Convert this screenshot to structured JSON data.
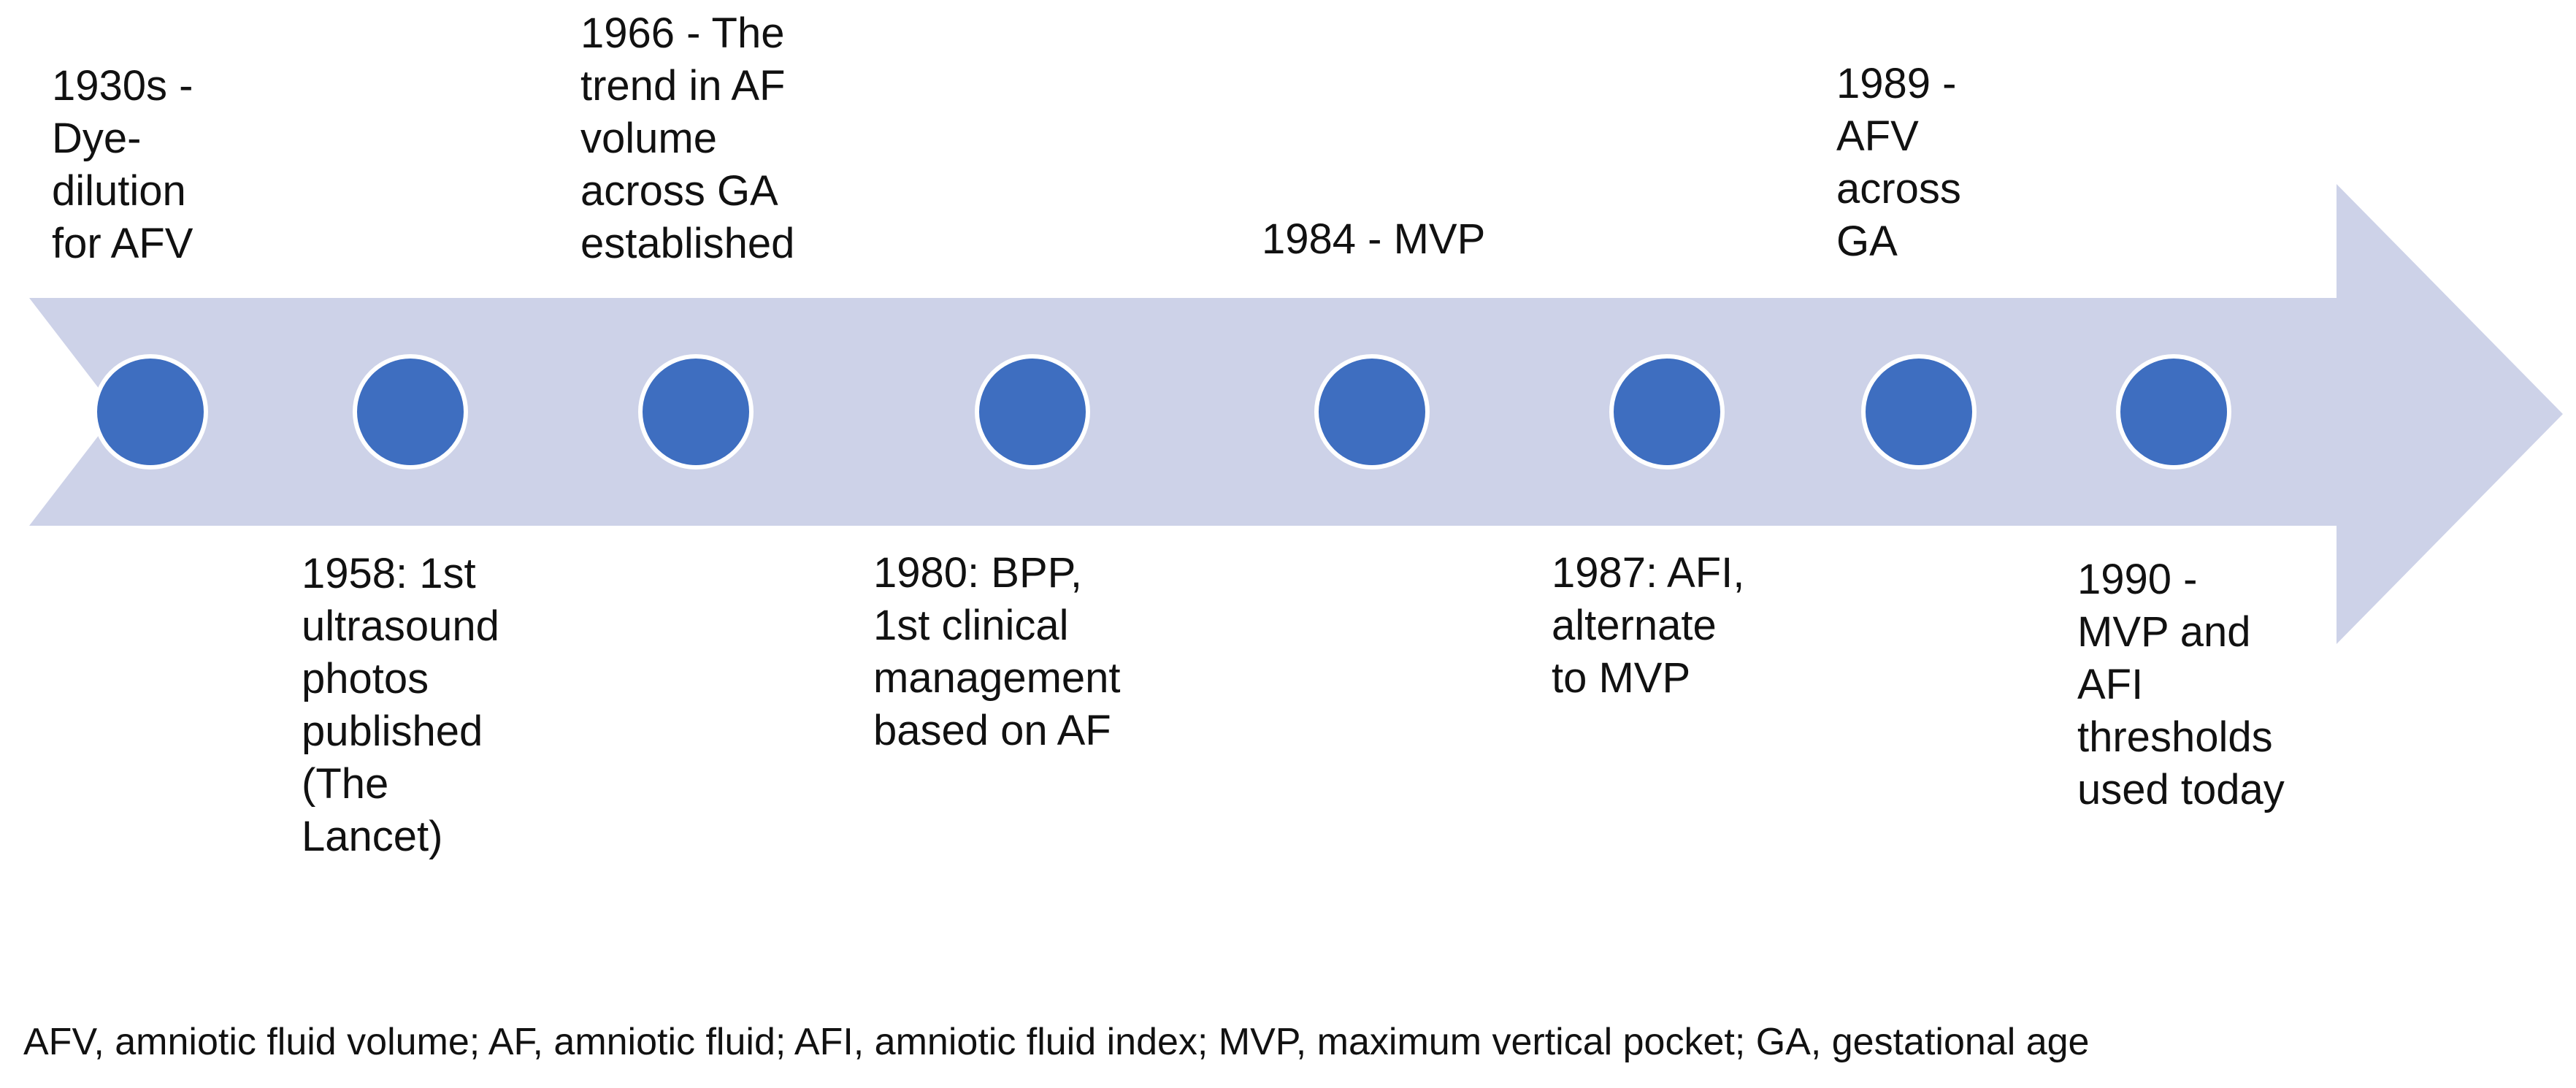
{
  "timeline": {
    "type": "horizontal-arrow-timeline",
    "direction": "left-to-right",
    "node_count": 8,
    "colors": {
      "arrow_band": "#CDD2E8",
      "node_fill": "#3E6EC0",
      "node_ring": "#FFFFFF",
      "text": "#111111",
      "background": "#FFFFFF"
    },
    "events": [
      {
        "year": "1930s",
        "side": "above",
        "text": "1930s -\nDye-\ndilution\nfor AFV"
      },
      {
        "year": "1958",
        "side": "below",
        "text": "1958: 1st\nultrasound\nphotos\npublished\n(The\nLancet)"
      },
      {
        "year": "1966",
        "side": "above",
        "text": "1966 - The\ntrend in AF\nvolume\nacross GA\nestablished"
      },
      {
        "year": "1980",
        "side": "below",
        "text": "1980: BPP,\n1st clinical\nmanagement\nbased on AF"
      },
      {
        "year": "1984",
        "side": "above",
        "text": "1984 - MVP"
      },
      {
        "year": "1987",
        "side": "below",
        "text": "1987: AFI,\nalternate\nto MVP"
      },
      {
        "year": "1989",
        "side": "above",
        "text": "1989 -\nAFV\nacross\nGA"
      },
      {
        "year": "1990",
        "side": "below",
        "text": "1990 -\nMVP and\nAFI\nthresholds\nused today"
      }
    ]
  },
  "caption": {
    "text": "AFV, amniotic fluid volume; AF, amniotic fluid; AFI, amniotic fluid index; MVP, maximum vertical pocket; GA, gestational age"
  }
}
